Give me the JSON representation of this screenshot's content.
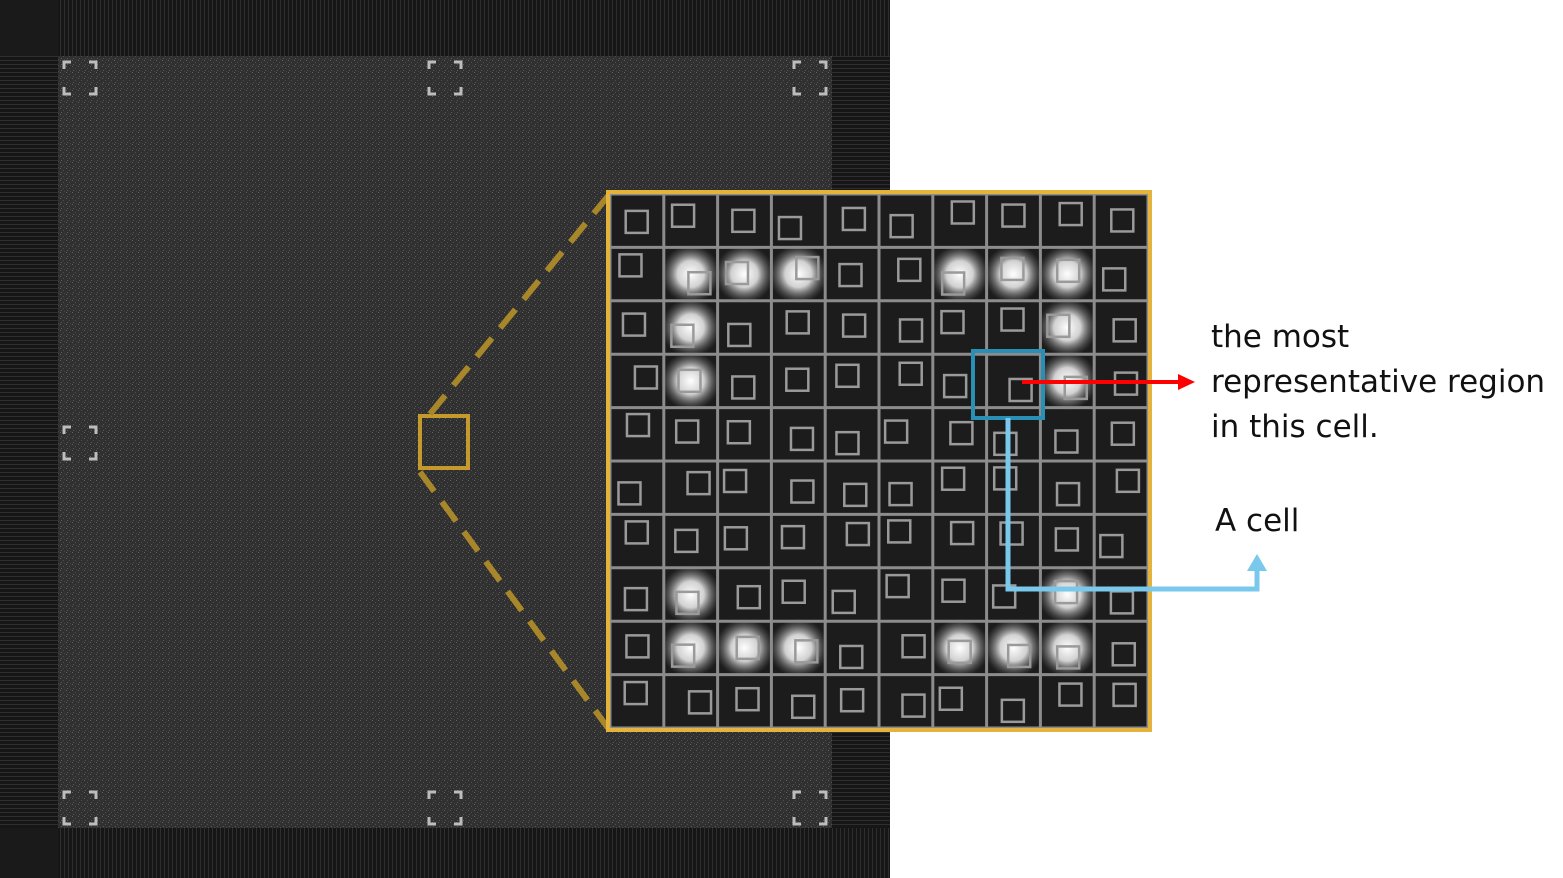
{
  "annotations": {
    "region_label": {
      "lines": [
        "the most",
        "representative region",
        "in this cell."
      ]
    },
    "cell_label": "A cell"
  },
  "colors": {
    "zoom_frame": "#e3b33e",
    "zoom_dashes": "#a8862a",
    "cell_highlight": "#2a8fb5",
    "cell_arrow": "#79c9ec",
    "region_arrow": "#ff0000",
    "grid_lines": "#8c8c8c",
    "background_dark": "#1e1e1e"
  },
  "zoom_grid": {
    "rows": 10,
    "cols": 10,
    "highlighted_cell": {
      "row": 3,
      "col": 7
    },
    "bright_cells": [
      [
        1,
        1
      ],
      [
        1,
        2
      ],
      [
        1,
        3
      ],
      [
        1,
        6
      ],
      [
        1,
        7
      ],
      [
        1,
        8
      ],
      [
        2,
        1
      ],
      [
        2,
        8
      ],
      [
        3,
        1
      ],
      [
        3,
        8
      ],
      [
        7,
        1
      ],
      [
        7,
        8
      ],
      [
        8,
        1
      ],
      [
        8,
        2
      ],
      [
        8,
        3
      ],
      [
        8,
        6
      ],
      [
        8,
        7
      ],
      [
        8,
        8
      ]
    ]
  }
}
